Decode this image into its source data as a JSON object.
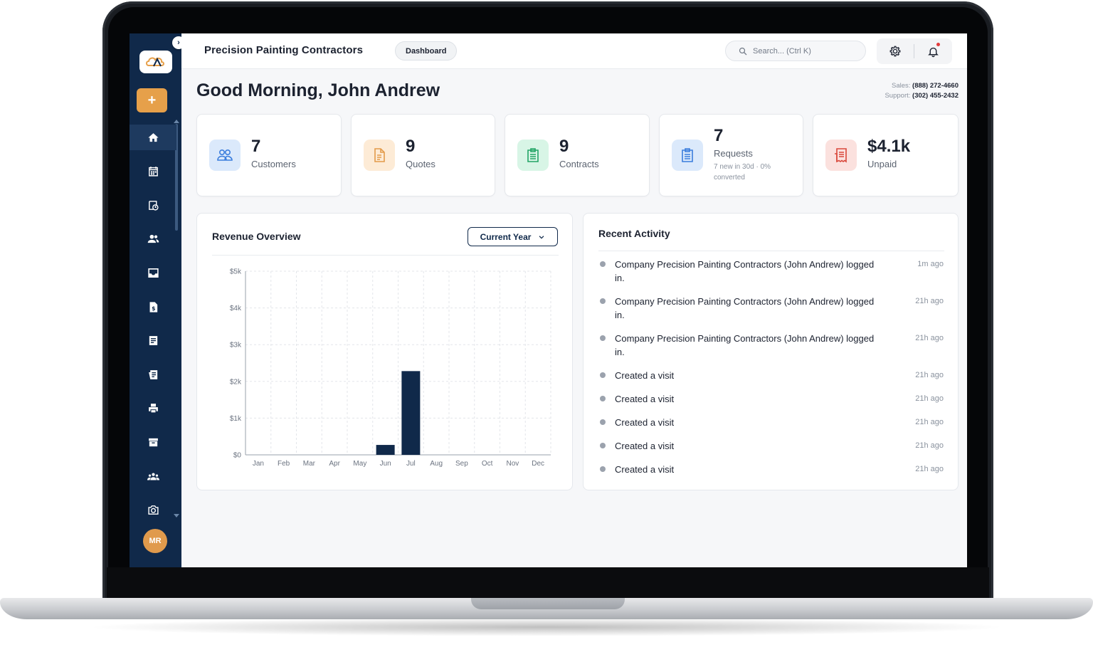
{
  "header": {
    "company_name": "Precision Painting Contractors",
    "page_badge": "Dashboard",
    "search_placeholder": "Search... (Ctrl K)"
  },
  "sidebar": {
    "add_label": "+",
    "collapse_label": "›",
    "avatar_initials": "MR",
    "items": [
      {
        "icon": "home-icon",
        "active": true
      },
      {
        "icon": "calendar-icon",
        "active": false
      },
      {
        "icon": "schedule-icon",
        "active": false
      },
      {
        "icon": "users-icon",
        "active": false
      },
      {
        "icon": "inbox-icon",
        "active": false
      },
      {
        "icon": "invoice-dollar-icon",
        "active": false
      },
      {
        "icon": "document-icon",
        "active": false
      },
      {
        "icon": "receipt-icon",
        "active": false
      },
      {
        "icon": "printer-icon",
        "active": false
      },
      {
        "icon": "archive-icon",
        "active": false
      },
      {
        "icon": "team-icon",
        "active": false
      },
      {
        "icon": "camera-icon",
        "active": false
      }
    ]
  },
  "greeting": "Good Morning, John Andrew",
  "contact": {
    "sales_label": "Sales:",
    "sales_phone": "(888) 272-4660",
    "support_label": "Support:",
    "support_phone": "(302) 455-2432"
  },
  "stats": [
    {
      "value": "7",
      "label": "Customers",
      "icon": "customers-icon",
      "bg": "#dbe9fb",
      "color": "#3b7ddd"
    },
    {
      "value": "9",
      "label": "Quotes",
      "icon": "quote-document-icon",
      "bg": "#fdebd6",
      "color": "#e39b4a"
    },
    {
      "value": "9",
      "label": "Contracts",
      "icon": "contract-clipboard-icon",
      "bg": "#d8f5e6",
      "color": "#22a566"
    },
    {
      "value": "7",
      "label": "Requests",
      "sub": "7 new in 30d · 0% converted",
      "icon": "request-clipboard-icon",
      "bg": "#dbe9fb",
      "color": "#3b7ddd"
    },
    {
      "value": "$4.1k",
      "label": "Unpaid",
      "icon": "unpaid-invoice-icon",
      "bg": "#fbe1de",
      "color": "#d9483b"
    }
  ],
  "revenue": {
    "title": "Revenue Overview",
    "period_select": "Current Year"
  },
  "chart_data": {
    "type": "bar",
    "title": "Revenue Overview",
    "categories": [
      "Jan",
      "Feb",
      "Mar",
      "Apr",
      "May",
      "Jun",
      "Jul",
      "Aug",
      "Sep",
      "Oct",
      "Nov",
      "Dec"
    ],
    "values": [
      0,
      0,
      0,
      0,
      0,
      270,
      2280,
      0,
      0,
      0,
      0,
      0
    ],
    "ylim": [
      0,
      5000
    ],
    "yticks": [
      0,
      1000,
      2000,
      3000,
      4000,
      5000
    ],
    "ytick_labels": [
      "$0",
      "$1k",
      "$2k",
      "$3k",
      "$4k",
      "$5k"
    ],
    "grid": true,
    "bar_color": "#10294a"
  },
  "activity": {
    "title": "Recent Activity",
    "items": [
      {
        "text": "Company Precision Painting Contractors (John Andrew) logged in.",
        "time": "1m ago"
      },
      {
        "text": "Company Precision Painting Contractors (John Andrew) logged in.",
        "time": "21h ago"
      },
      {
        "text": "Company Precision Painting Contractors (John Andrew) logged in.",
        "time": "21h ago"
      },
      {
        "text": "Created a visit",
        "time": "21h ago"
      },
      {
        "text": "Created a visit",
        "time": "21h ago"
      },
      {
        "text": "Created a visit",
        "time": "21h ago"
      },
      {
        "text": "Created a visit",
        "time": "21h ago"
      },
      {
        "text": "Created a visit",
        "time": "21h ago"
      }
    ]
  }
}
